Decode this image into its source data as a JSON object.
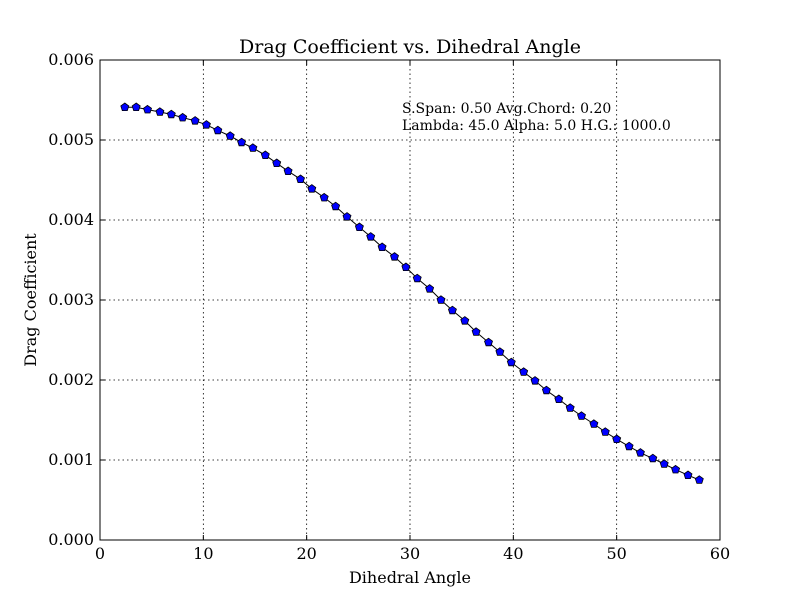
{
  "chart_data": {
    "type": "line",
    "title": "Drag Coefficient vs. Dihedral Angle",
    "xlabel": "Dihedral Angle",
    "ylabel": "Drag Coefficient",
    "xlim": [
      0,
      60
    ],
    "ylim": [
      0.0,
      0.006
    ],
    "xticks": [
      "0",
      "10",
      "20",
      "30",
      "40",
      "50",
      "60"
    ],
    "yticks": [
      "0.000",
      "0.001",
      "0.002",
      "0.003",
      "0.004",
      "0.005",
      "0.006"
    ],
    "grid": true,
    "annotations": [
      "S.Span: 0.50 Avg.Chord: 0.20",
      "Lambda: 45.0 Alpha:  5.0 H.G.: 1000.0"
    ],
    "series": [
      {
        "line_color": "#000000",
        "marker_color": "#0000ff",
        "marker": "pentagon",
        "x": [
          2.4,
          3.5,
          4.6,
          5.8,
          6.9,
          8.0,
          9.2,
          10.3,
          11.4,
          12.6,
          13.7,
          14.8,
          16.0,
          17.1,
          18.2,
          19.4,
          20.5,
          21.7,
          22.8,
          23.9,
          25.1,
          26.2,
          27.3,
          28.5,
          29.6,
          30.7,
          31.9,
          33.0,
          34.1,
          35.3,
          36.4,
          37.6,
          38.7,
          39.8,
          41.0,
          42.1,
          43.2,
          44.4,
          45.5,
          46.6,
          47.8,
          48.9,
          50.0,
          51.2,
          52.3,
          53.5,
          54.6,
          55.7,
          56.9,
          58.0
        ],
        "y": [
          0.00541,
          0.00541,
          0.00538,
          0.00535,
          0.00532,
          0.00528,
          0.00524,
          0.00519,
          0.00512,
          0.00505,
          0.00497,
          0.0049,
          0.00481,
          0.00471,
          0.00461,
          0.00451,
          0.00439,
          0.00428,
          0.00417,
          0.00404,
          0.00391,
          0.00379,
          0.00366,
          0.00354,
          0.00341,
          0.00327,
          0.00314,
          0.003,
          0.00287,
          0.00274,
          0.0026,
          0.00247,
          0.00235,
          0.00222,
          0.0021,
          0.00199,
          0.00187,
          0.00176,
          0.00165,
          0.00155,
          0.00145,
          0.00135,
          0.00126,
          0.00117,
          0.00109,
          0.00102,
          0.00095,
          0.00088,
          0.00081,
          0.00075
        ]
      }
    ]
  }
}
